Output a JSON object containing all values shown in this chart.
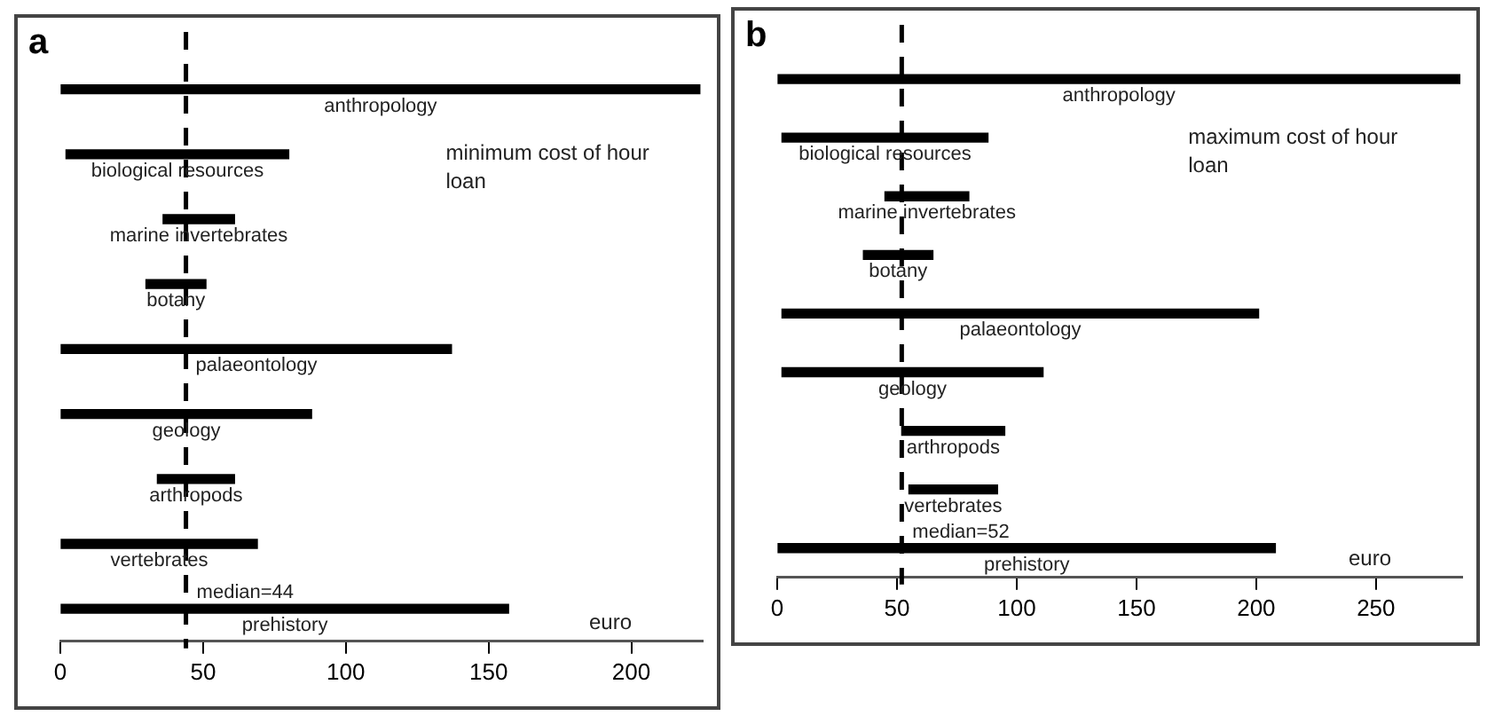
{
  "chart_data": [
    {
      "type": "bar",
      "orientation": "horizontal",
      "title": "a",
      "xlabel": "euro",
      "annotations": [
        "minimum cost of hour loan"
      ],
      "color": "#000000",
      "categories": [
        "anthropology",
        "biological resources",
        "marine invertebrates",
        "botany",
        "palaeontology",
        "geology",
        "arthropods",
        "vertebrates",
        "prehistory"
      ],
      "base": [
        0,
        2,
        36,
        30,
        0,
        0,
        34,
        0,
        0
      ],
      "values": [
        224,
        78,
        25,
        21,
        137,
        88,
        27,
        69,
        157
      ],
      "xlim": [
        0,
        225
      ],
      "xticks": [
        0,
        50,
        100,
        150,
        200
      ],
      "grid": false,
      "legend": false,
      "ref_lines": [
        {
          "axis": "x",
          "value": 44,
          "label": "median=44",
          "line_style": "dashed",
          "color": "#000000"
        }
      ]
    },
    {
      "type": "bar",
      "orientation": "horizontal",
      "title": "b",
      "xlabel": "euro",
      "annotations": [
        "maximum cost of hour loan"
      ],
      "color": "#000000",
      "categories": [
        "anthropology",
        "biological resources",
        "marine invertebrates",
        "botany",
        "palaeontology",
        "geology",
        "arthropods",
        "vertebrates",
        "prehistory"
      ],
      "base": [
        0,
        2,
        45,
        36,
        2,
        2,
        52,
        55,
        0
      ],
      "values": [
        285,
        86,
        35,
        29,
        199,
        109,
        43,
        37,
        208
      ],
      "xlim": [
        0,
        286
      ],
      "xticks": [
        0,
        50,
        100,
        150,
        200,
        250
      ],
      "grid": false,
      "legend": false,
      "ref_lines": [
        {
          "axis": "x",
          "value": 52,
          "label": "median=52",
          "line_style": "dashed",
          "color": "#000000"
        }
      ]
    }
  ]
}
